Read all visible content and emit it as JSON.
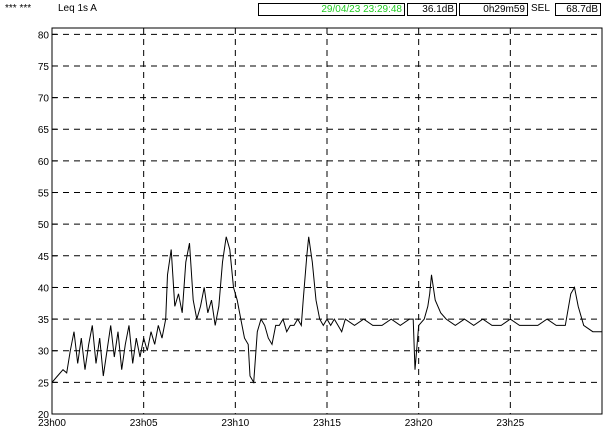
{
  "header": {
    "stars": "*** ***",
    "measure": "Leq 1s  A",
    "datetime": "29/04/23 23:29:48",
    "datetime_color": "#22cc22",
    "level": "36.1dB",
    "duration": "0h29m59",
    "sel_label": "SEL",
    "sel_value": "68.7dB"
  },
  "chart_data": {
    "type": "line",
    "title": "",
    "xlabel": "",
    "ylabel": "",
    "ylim": [
      20,
      81
    ],
    "xlim": [
      0,
      30
    ],
    "x_unit": "minutes after 23h00",
    "yticks": [
      "20",
      "25",
      "30",
      "35",
      "40",
      "45",
      "50",
      "55",
      "60",
      "65",
      "70",
      "75",
      "80"
    ],
    "xticks": [
      "23h00",
      "23h05",
      "23h10",
      "23h15",
      "23h20",
      "23h25"
    ],
    "grid": true,
    "line_color": "#000000",
    "series": [
      {
        "name": "",
        "points": [
          [
            0,
            25
          ],
          [
            0.3,
            26
          ],
          [
            0.6,
            27
          ],
          [
            0.8,
            26.5
          ],
          [
            1.0,
            30
          ],
          [
            1.2,
            33
          ],
          [
            1.4,
            28
          ],
          [
            1.6,
            32
          ],
          [
            1.8,
            27
          ],
          [
            2.0,
            31
          ],
          [
            2.2,
            34
          ],
          [
            2.4,
            28
          ],
          [
            2.6,
            32
          ],
          [
            2.8,
            26
          ],
          [
            3.0,
            30
          ],
          [
            3.2,
            34
          ],
          [
            3.4,
            29
          ],
          [
            3.6,
            33
          ],
          [
            3.8,
            27
          ],
          [
            4.0,
            31
          ],
          [
            4.2,
            34
          ],
          [
            4.4,
            28
          ],
          [
            4.6,
            32
          ],
          [
            4.8,
            29
          ],
          [
            5.0,
            32
          ],
          [
            5.2,
            30
          ],
          [
            5.4,
            33
          ],
          [
            5.6,
            31
          ],
          [
            5.8,
            34
          ],
          [
            6.0,
            32
          ],
          [
            6.2,
            35
          ],
          [
            6.3,
            42
          ],
          [
            6.5,
            46
          ],
          [
            6.7,
            37
          ],
          [
            6.9,
            39
          ],
          [
            7.1,
            36
          ],
          [
            7.3,
            44
          ],
          [
            7.5,
            47
          ],
          [
            7.7,
            38
          ],
          [
            7.9,
            35
          ],
          [
            8.1,
            37
          ],
          [
            8.3,
            40
          ],
          [
            8.5,
            36
          ],
          [
            8.7,
            38
          ],
          [
            8.9,
            34
          ],
          [
            9.1,
            37
          ],
          [
            9.3,
            44
          ],
          [
            9.5,
            48
          ],
          [
            9.7,
            46
          ],
          [
            9.9,
            40
          ],
          [
            10.1,
            38
          ],
          [
            10.3,
            35
          ],
          [
            10.5,
            32
          ],
          [
            10.7,
            31
          ],
          [
            10.8,
            26
          ],
          [
            11.0,
            25
          ],
          [
            11.2,
            33
          ],
          [
            11.4,
            35
          ],
          [
            11.6,
            34
          ],
          [
            11.8,
            32
          ],
          [
            12.0,
            31
          ],
          [
            12.2,
            34
          ],
          [
            12.4,
            34
          ],
          [
            12.6,
            35
          ],
          [
            12.8,
            33
          ],
          [
            13.0,
            34
          ],
          [
            13.2,
            34
          ],
          [
            13.4,
            35
          ],
          [
            13.6,
            34
          ],
          [
            13.7,
            38
          ],
          [
            13.9,
            45
          ],
          [
            14.0,
            48
          ],
          [
            14.2,
            44
          ],
          [
            14.4,
            38
          ],
          [
            14.6,
            35
          ],
          [
            14.8,
            34
          ],
          [
            15.0,
            35
          ],
          [
            15.2,
            34
          ],
          [
            15.4,
            35
          ],
          [
            15.6,
            34
          ],
          [
            15.8,
            33
          ],
          [
            16.0,
            35
          ],
          [
            16.5,
            34
          ],
          [
            17.0,
            35
          ],
          [
            17.5,
            34
          ],
          [
            18.0,
            34
          ],
          [
            18.5,
            35
          ],
          [
            19.0,
            34
          ],
          [
            19.5,
            35
          ],
          [
            19.7,
            35
          ],
          [
            19.8,
            27
          ],
          [
            20.0,
            34
          ],
          [
            20.3,
            35
          ],
          [
            20.5,
            37
          ],
          [
            20.6,
            39
          ],
          [
            20.7,
            42
          ],
          [
            20.9,
            38
          ],
          [
            21.2,
            36
          ],
          [
            21.5,
            35
          ],
          [
            22.0,
            34
          ],
          [
            22.5,
            35
          ],
          [
            23.0,
            34
          ],
          [
            23.5,
            35
          ],
          [
            24.0,
            34
          ],
          [
            24.5,
            34
          ],
          [
            25.0,
            35
          ],
          [
            25.5,
            34
          ],
          [
            26.0,
            34
          ],
          [
            26.5,
            34
          ],
          [
            27.0,
            35
          ],
          [
            27.5,
            34
          ],
          [
            28.0,
            34
          ],
          [
            28.3,
            39
          ],
          [
            28.5,
            40
          ],
          [
            28.7,
            37
          ],
          [
            29.0,
            34
          ],
          [
            29.5,
            33
          ],
          [
            30,
            33
          ]
        ]
      }
    ]
  }
}
